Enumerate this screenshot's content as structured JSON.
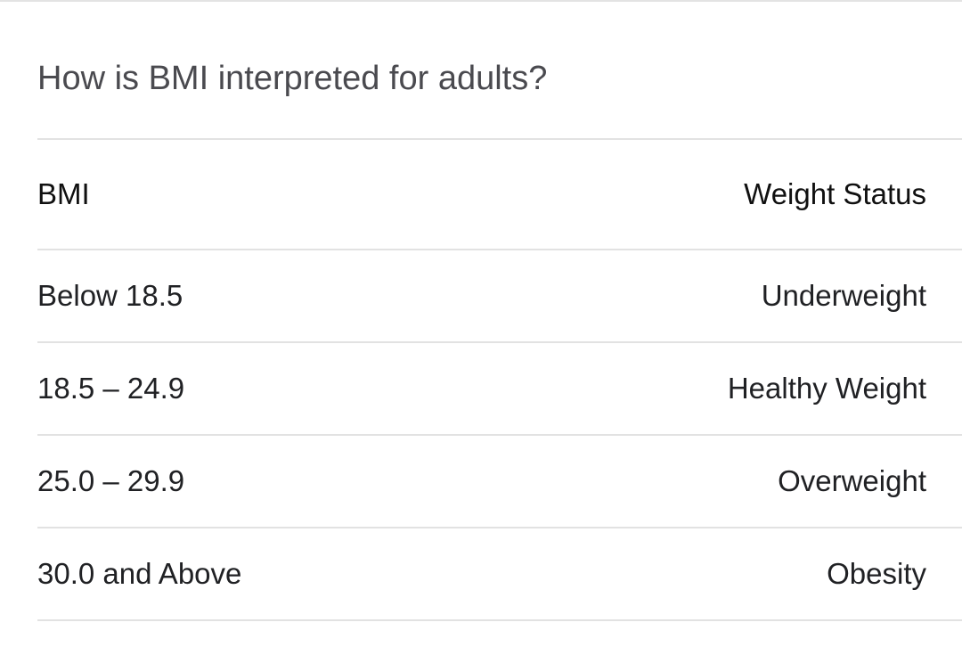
{
  "heading": "How is BMI interpreted for adults?",
  "table": {
    "headers": {
      "bmi": "BMI",
      "status": "Weight Status"
    },
    "rows": [
      {
        "bmi": "Below 18.5",
        "status": "Underweight"
      },
      {
        "bmi": "18.5 – 24.9",
        "status": "Healthy Weight"
      },
      {
        "bmi": "25.0 – 29.9",
        "status": "Overweight"
      },
      {
        "bmi": "30.0 and Above",
        "status": "Obesity"
      }
    ]
  }
}
